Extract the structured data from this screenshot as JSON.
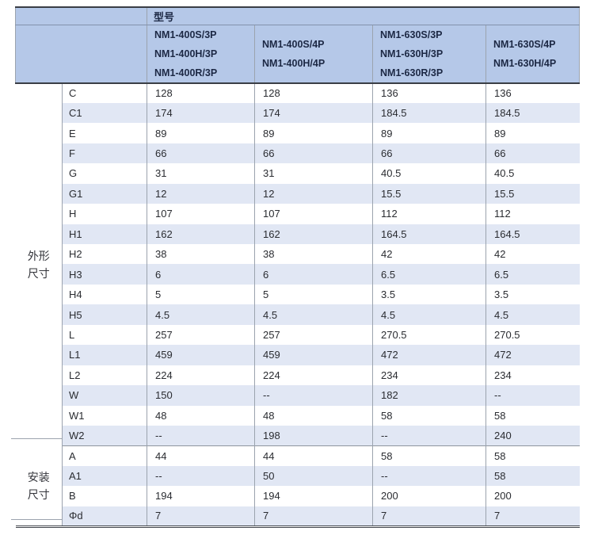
{
  "page": {
    "background": "#ffffff"
  },
  "table": {
    "header": {
      "model_label": "型号",
      "column_groups": [
        {
          "models": [
            "NM1-400S/3P",
            "NM1-400H/3P",
            "NM1-400R/3P"
          ]
        },
        {
          "models": [
            "NM1-400S/4P",
            "NM1-400H/4P"
          ]
        },
        {
          "models": [
            "NM1-630S/3P",
            "NM1-630H/3P",
            "NM1-630R/3P"
          ]
        },
        {
          "models": [
            "NM1-630S/4P",
            "NM1-630H/4P"
          ]
        }
      ]
    },
    "sections": [
      {
        "group_label": "外形尺寸",
        "group_label_lines": [
          "外形",
          "尺寸"
        ],
        "rows": [
          {
            "dim": "C",
            "values": [
              "128",
              "128",
              "136",
              "136"
            ]
          },
          {
            "dim": "C1",
            "values": [
              "174",
              "174",
              "184.5",
              "184.5"
            ]
          },
          {
            "dim": "E",
            "values": [
              "89",
              "89",
              "89",
              "89"
            ]
          },
          {
            "dim": "F",
            "values": [
              "66",
              "66",
              "66",
              "66"
            ]
          },
          {
            "dim": "G",
            "values": [
              "31",
              "31",
              "40.5",
              "40.5"
            ]
          },
          {
            "dim": "G1",
            "values": [
              "12",
              "12",
              "15.5",
              "15.5"
            ]
          },
          {
            "dim": "H",
            "values": [
              "107",
              "107",
              "112",
              "112"
            ]
          },
          {
            "dim": "H1",
            "values": [
              "162",
              "162",
              "164.5",
              "164.5"
            ]
          },
          {
            "dim": "H2",
            "values": [
              "38",
              "38",
              "42",
              "42"
            ]
          },
          {
            "dim": "H3",
            "values": [
              "6",
              "6",
              "6.5",
              "6.5"
            ]
          },
          {
            "dim": "H4",
            "values": [
              "5",
              "5",
              "3.5",
              "3.5"
            ]
          },
          {
            "dim": "H5",
            "values": [
              "4.5",
              "4.5",
              "4.5",
              "4.5"
            ]
          },
          {
            "dim": "L",
            "values": [
              "257",
              "257",
              "270.5",
              "270.5"
            ]
          },
          {
            "dim": "L1",
            "values": [
              "459",
              "459",
              "472",
              "472"
            ]
          },
          {
            "dim": "L2",
            "values": [
              "224",
              "224",
              "234",
              "234"
            ]
          },
          {
            "dim": "W",
            "values": [
              "150",
              "--",
              "182",
              "--"
            ]
          },
          {
            "dim": "W1",
            "values": [
              "48",
              "48",
              "58",
              "58"
            ]
          },
          {
            "dim": "W2",
            "values": [
              "--",
              "198",
              "--",
              "240"
            ]
          }
        ]
      },
      {
        "group_label": "安装尺寸",
        "group_label_lines": [
          "安装",
          "尺寸"
        ],
        "rows": [
          {
            "dim": "A",
            "values": [
              "44",
              "44",
              "58",
              "58"
            ]
          },
          {
            "dim": "A1",
            "values": [
              "--",
              "50",
              "--",
              "58"
            ]
          },
          {
            "dim": "B",
            "values": [
              "194",
              "194",
              "200",
              "200"
            ]
          },
          {
            "dim": "Φd",
            "values": [
              "7",
              "7",
              "7",
              "7"
            ]
          }
        ]
      }
    ],
    "colors": {
      "header_bg": "#b5c8e8",
      "stripe_bg": "#e1e7f4",
      "row_bg": "#ffffff",
      "page_bg": "#ffffff",
      "border_dark": "#3a3e45",
      "border_gray": "#9ba3ae",
      "header_divider": "#8292ac",
      "section_divider": "#8e959e",
      "text_dark": "#2a2c31",
      "header_text": "#1c2844"
    }
  }
}
